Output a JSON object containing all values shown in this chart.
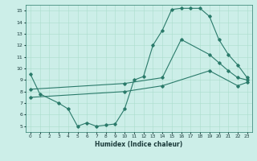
{
  "xlabel": "Humidex (Indice chaleur)",
  "bg_color": "#cceee8",
  "line_color": "#2a7a6a",
  "grid_color": "#aaddcc",
  "xlim": [
    -0.5,
    23.5
  ],
  "ylim": [
    4.5,
    15.5
  ],
  "xticks": [
    0,
    1,
    2,
    3,
    4,
    5,
    6,
    7,
    8,
    9,
    10,
    11,
    12,
    13,
    14,
    15,
    16,
    17,
    18,
    19,
    20,
    21,
    22,
    23
  ],
  "yticks": [
    5,
    6,
    7,
    8,
    9,
    10,
    11,
    12,
    13,
    14,
    15
  ],
  "line1_x": [
    0,
    1,
    3,
    4,
    5,
    6,
    7,
    8,
    9,
    10,
    11,
    12,
    13,
    14,
    15,
    16,
    17,
    18,
    19,
    20,
    21,
    22,
    23
  ],
  "line1_y": [
    9.5,
    7.8,
    7.0,
    6.5,
    5.0,
    5.3,
    5.0,
    5.1,
    5.2,
    6.5,
    9.0,
    9.3,
    12.0,
    13.3,
    15.1,
    15.2,
    15.2,
    15.2,
    14.5,
    12.5,
    11.2,
    10.3,
    9.2
  ],
  "line2_x": [
    0,
    10,
    14,
    16,
    19,
    20,
    21,
    22,
    23
  ],
  "line2_y": [
    8.2,
    8.7,
    9.2,
    12.5,
    11.2,
    10.5,
    9.8,
    9.2,
    9.0
  ],
  "line3_x": [
    0,
    10,
    14,
    19,
    22,
    23
  ],
  "line3_y": [
    7.5,
    8.0,
    8.5,
    9.8,
    8.5,
    8.8
  ]
}
